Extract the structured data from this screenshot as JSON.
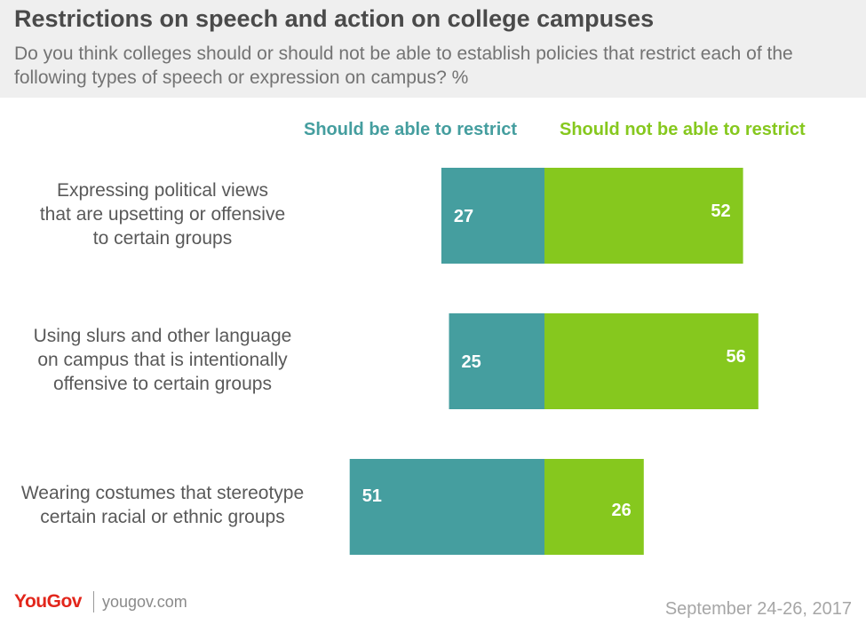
{
  "chart_data": {
    "type": "bar",
    "title": "Restrictions on speech and action on college campuses",
    "subtitle": "Do you think colleges should or should not be able to establish policies that restrict each of the following types of speech or expression on campus? %",
    "categories": [
      "Expressing political views that are upsetting or offensive to certain groups",
      "Using slurs and other language on campus that is intentionally offensive to certain groups",
      "Wearing costumes that stereotype certain racial or ethnic groups"
    ],
    "series": [
      {
        "name": "Should be able to restrict",
        "values": [
          27,
          25,
          51
        ],
        "color": "#459e9f"
      },
      {
        "name": "Should not be able to restrict",
        "values": [
          52,
          56,
          26
        ],
        "color": "#86c81e"
      }
    ],
    "legend": "top",
    "grid": false
  },
  "labels": {
    "row_lines": [
      [
        "Expressing political views",
        "that are upsetting or offensive",
        "to certain groups"
      ],
      [
        "Using slurs and other language",
        "on campus that is intentionally",
        "offensive to certain groups"
      ],
      [
        "Wearing costumes that stereotype",
        "certain racial or ethnic groups"
      ]
    ]
  },
  "footer": {
    "logo": "YouGov",
    "site": "yougov.com",
    "date": "September 24-26, 2017"
  }
}
